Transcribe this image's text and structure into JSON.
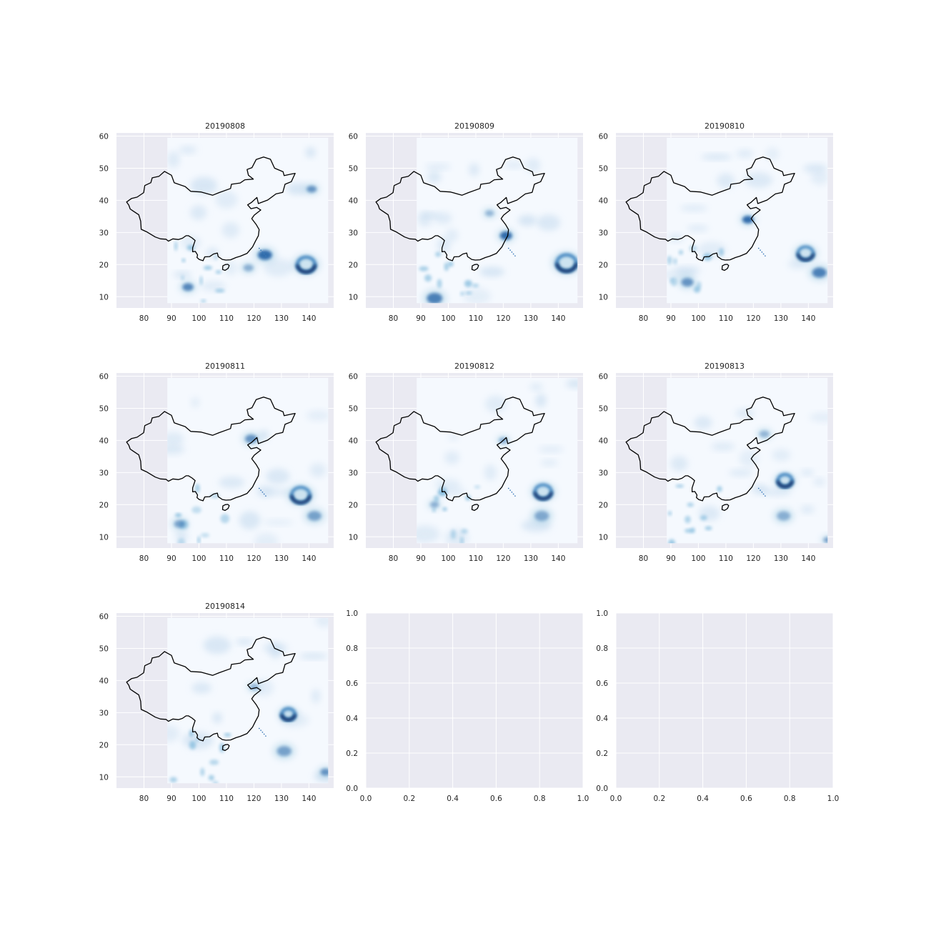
{
  "chart_data": [
    {
      "type": "heatmap",
      "title": "20190808",
      "xticks": [
        80,
        90,
        100,
        110,
        120,
        130,
        140
      ],
      "yticks": [
        10,
        20,
        30,
        40,
        50,
        60
      ],
      "xlim": [
        70,
        149
      ],
      "ylim": [
        6.5,
        61
      ],
      "grid": true,
      "colormap": "Blues",
      "features": [
        {
          "lon": 139,
          "lat": 20,
          "r": 3.2,
          "w": 1.6,
          "ring": true
        },
        {
          "lon": 124,
          "lat": 23,
          "r": 2.6,
          "w": 1.8
        },
        {
          "lon": 141,
          "lat": 43.5,
          "r": 1.8,
          "w": 1.2
        },
        {
          "lon": 96,
          "lat": 13,
          "r": 2.0,
          "w": 1.4
        },
        {
          "lon": 118,
          "lat": 19,
          "r": 1.8,
          "w": 0.8
        }
      ]
    },
    {
      "type": "heatmap",
      "title": "20190809",
      "xticks": [
        80,
        90,
        100,
        110,
        120,
        130,
        140
      ],
      "yticks": [
        10,
        20,
        30,
        40,
        50,
        60
      ],
      "xlim": [
        70,
        149
      ],
      "ylim": [
        6.5,
        61
      ],
      "grid": true,
      "colormap": "Blues",
      "features": [
        {
          "lon": 143,
          "lat": 20.5,
          "r": 3.5,
          "w": 1.6,
          "ring": true
        },
        {
          "lon": 121,
          "lat": 29,
          "r": 2.2,
          "w": 1.8
        },
        {
          "lon": 95,
          "lat": 9.5,
          "r": 2.8,
          "w": 1.5
        },
        {
          "lon": 115,
          "lat": 36,
          "r": 1.6,
          "w": 0.7
        }
      ]
    },
    {
      "type": "heatmap",
      "title": "20190810",
      "xticks": [
        80,
        90,
        100,
        110,
        120,
        130,
        140
      ],
      "yticks": [
        10,
        20,
        30,
        40,
        50,
        60
      ],
      "xlim": [
        70,
        149
      ],
      "ylim": [
        6.5,
        61
      ],
      "grid": true,
      "colormap": "Blues",
      "features": [
        {
          "lon": 139,
          "lat": 23.5,
          "r": 2.8,
          "w": 1.4,
          "ring": true
        },
        {
          "lon": 144,
          "lat": 17.5,
          "r": 2.6,
          "w": 1.5
        },
        {
          "lon": 118,
          "lat": 34,
          "r": 2.0,
          "w": 1.8
        },
        {
          "lon": 96,
          "lat": 14.5,
          "r": 2.2,
          "w": 1.2
        }
      ]
    },
    {
      "type": "heatmap",
      "title": "20190811",
      "xticks": [
        80,
        90,
        100,
        110,
        120,
        130,
        140
      ],
      "yticks": [
        10,
        20,
        30,
        40,
        50,
        60
      ],
      "xlim": [
        70,
        149
      ],
      "ylim": [
        6.5,
        61
      ],
      "grid": true,
      "colormap": "Blues",
      "features": [
        {
          "lon": 137,
          "lat": 23,
          "r": 3.3,
          "w": 1.5,
          "ring": true
        },
        {
          "lon": 142,
          "lat": 16.5,
          "r": 2.5,
          "w": 1.0
        },
        {
          "lon": 119,
          "lat": 40.5,
          "r": 2.2,
          "w": 1.2
        },
        {
          "lon": 93,
          "lat": 14,
          "r": 2.0,
          "w": 1.0
        }
      ]
    },
    {
      "type": "heatmap",
      "title": "20190812",
      "xticks": [
        80,
        90,
        100,
        110,
        120,
        130,
        140
      ],
      "yticks": [
        10,
        20,
        30,
        40,
        50,
        60
      ],
      "xlim": [
        70,
        149
      ],
      "ylim": [
        6.5,
        61
      ],
      "grid": true,
      "colormap": "Blues",
      "features": [
        {
          "lon": 134.5,
          "lat": 24,
          "r": 3.0,
          "w": 1.5,
          "ring": true
        },
        {
          "lon": 134,
          "lat": 16.5,
          "r": 2.6,
          "w": 0.9
        },
        {
          "lon": 120,
          "lat": 40,
          "r": 1.6,
          "w": 0.8
        },
        {
          "lon": 95,
          "lat": 20,
          "r": 1.6,
          "w": 0.8
        }
      ]
    },
    {
      "type": "heatmap",
      "title": "20190813",
      "xticks": [
        80,
        90,
        100,
        110,
        120,
        130,
        140
      ],
      "yticks": [
        10,
        20,
        30,
        40,
        50,
        60
      ],
      "xlim": [
        70,
        149
      ],
      "ylim": [
        6.5,
        61
      ],
      "grid": true,
      "colormap": "Blues",
      "features": [
        {
          "lon": 131.5,
          "lat": 27.5,
          "r": 2.6,
          "w": 1.6,
          "ring": true
        },
        {
          "lon": 131,
          "lat": 16.5,
          "r": 2.4,
          "w": 0.8
        },
        {
          "lon": 124,
          "lat": 42,
          "r": 1.8,
          "w": 0.7
        },
        {
          "lon": 147,
          "lat": 9,
          "r": 1.5,
          "w": 1.0
        }
      ]
    },
    {
      "type": "heatmap",
      "title": "20190814",
      "xticks": [
        80,
        90,
        100,
        110,
        120,
        130,
        140
      ],
      "yticks": [
        10,
        20,
        30,
        40,
        50,
        60
      ],
      "xlim": [
        70,
        149
      ],
      "ylim": [
        6.5,
        61
      ],
      "grid": true,
      "colormap": "Blues",
      "features": [
        {
          "lon": 132.5,
          "lat": 29.5,
          "r": 2.4,
          "w": 1.6,
          "ring": true
        },
        {
          "lon": 131,
          "lat": 18,
          "r": 2.6,
          "w": 1.0
        },
        {
          "lon": 146,
          "lat": 11.5,
          "r": 1.8,
          "w": 1.2
        },
        {
          "lon": 120,
          "lat": 38,
          "r": 1.6,
          "w": 0.7
        }
      ]
    },
    {
      "type": "empty",
      "title": "",
      "xticks": [
        0.0,
        0.2,
        0.4,
        0.6,
        0.8,
        1.0
      ],
      "yticks": [
        0.0,
        0.2,
        0.4,
        0.6,
        0.8,
        1.0
      ],
      "xlim": [
        0,
        1
      ],
      "ylim": [
        0,
        1
      ],
      "grid": true
    },
    {
      "type": "empty",
      "title": "",
      "xticks": [
        0.0,
        0.2,
        0.4,
        0.6,
        0.8,
        1.0
      ],
      "yticks": [
        0.0,
        0.2,
        0.4,
        0.6,
        0.8,
        1.0
      ],
      "xlim": [
        0,
        1
      ],
      "ylim": [
        0,
        1
      ],
      "grid": true
    }
  ],
  "colors": {
    "axes_bg": "#eaeaf2",
    "grid": "#ffffff",
    "field_base": "#f5f9fe",
    "field_dark": "#08306b",
    "border": "#000000",
    "text": "#262626"
  }
}
